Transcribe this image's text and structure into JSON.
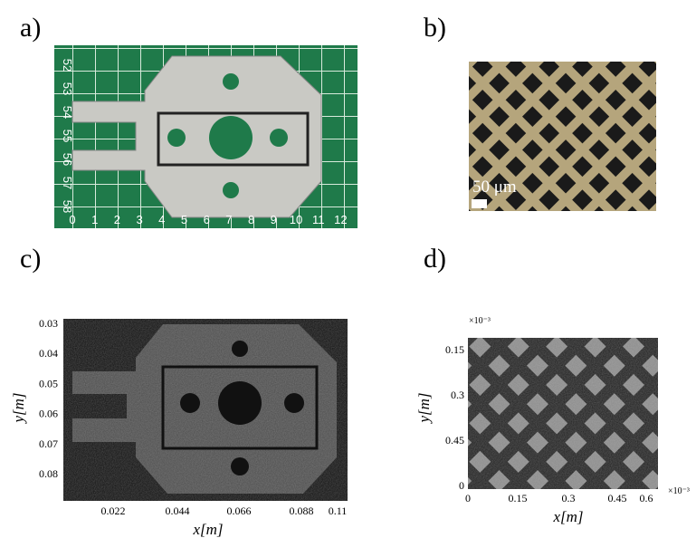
{
  "panels": [
    {
      "label": "a)",
      "ruler_x": [
        "0",
        "1",
        "2",
        "3",
        "4",
        "5",
        "6",
        "7",
        "8",
        "9",
        "10",
        "11",
        "12"
      ],
      "ruler_y": [
        "52",
        "53",
        "54",
        "55",
        "56",
        "57",
        "58"
      ]
    },
    {
      "label": "b)",
      "scale_bar": "50 μm"
    },
    {
      "label": "c)",
      "xticks": [
        "0.022",
        "0.044",
        "0.066",
        "0.088",
        "0.11"
      ],
      "yticks": [
        "0.03",
        "0.04",
        "0.05",
        "0.06",
        "0.07",
        "0.08"
      ],
      "xlabel": "x[m]",
      "ylabel": "y[m]"
    },
    {
      "label": "d)",
      "xticks": [
        "0",
        "0.15",
        "0.3",
        "0.45",
        "0.6"
      ],
      "yticks": [
        "0.15",
        "0.3",
        "0.45",
        "0"
      ],
      "xlabel": "x[m]",
      "ylabel": "y[m]",
      "x_exponent": "×10⁻³",
      "y_exponent": "×10⁻³"
    }
  ]
}
